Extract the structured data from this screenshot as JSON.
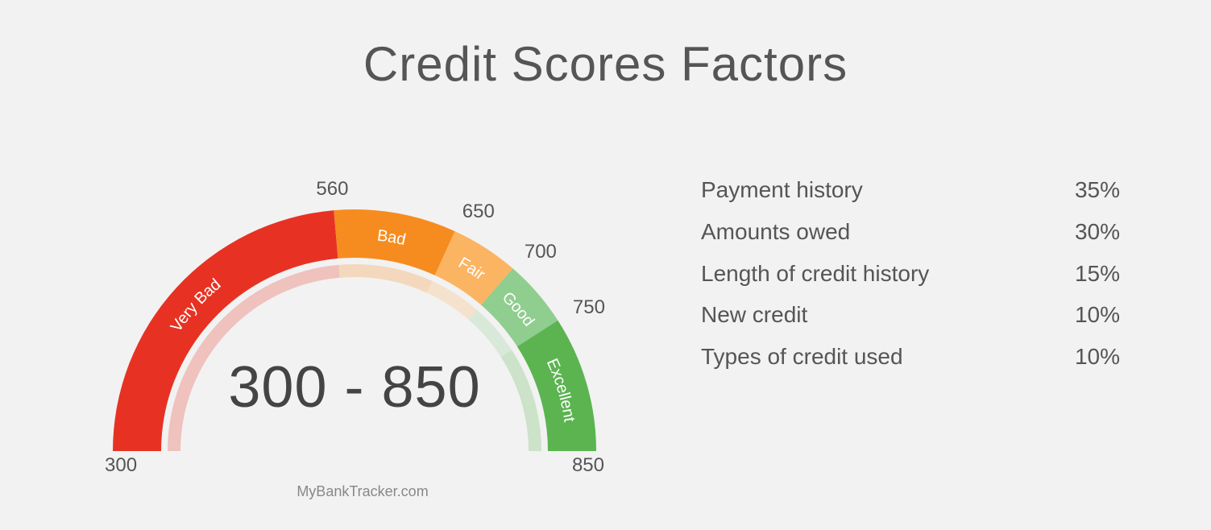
{
  "title": "Credit Scores Factors",
  "attribution": "MyBankTracker.com",
  "background_color": "#f2f2f2",
  "gauge": {
    "type": "gauge",
    "min": 300,
    "max": 850,
    "center_label": "300 - 850",
    "center_fontsize": 72,
    "outer_radius": 300,
    "inner_radius": 240,
    "inner_alpha_band": {
      "outer_radius": 232,
      "inner_radius": 216,
      "opacity": 0.25
    },
    "tick_fontsize": 24,
    "segment_label_fontsize": 20,
    "segment_label_color": "#ffffff",
    "segments": [
      {
        "from": 300,
        "to": 560,
        "label": "Very Bad",
        "color": "#e73223"
      },
      {
        "from": 560,
        "to": 650,
        "label": "Bad",
        "color": "#f68c1f"
      },
      {
        "from": 650,
        "to": 700,
        "label": "Fair",
        "color": "#fbb461"
      },
      {
        "from": 700,
        "to": 750,
        "label": "Good",
        "color": "#8fce8f"
      },
      {
        "from": 750,
        "to": 850,
        "label": "Excellent",
        "color": "#5bb450"
      }
    ],
    "ticks": [
      300,
      560,
      650,
      700,
      750,
      850
    ]
  },
  "factors": {
    "label_fontsize": 28,
    "items": [
      {
        "label": "Payment  history",
        "pct": "35%"
      },
      {
        "label": "Amounts owed",
        "pct": "30%"
      },
      {
        "label": "Length of  credit  history",
        "pct": "15%"
      },
      {
        "label": "New credit",
        "pct": "10%"
      },
      {
        "label": "Types of credit used",
        "pct": "10%"
      }
    ]
  }
}
